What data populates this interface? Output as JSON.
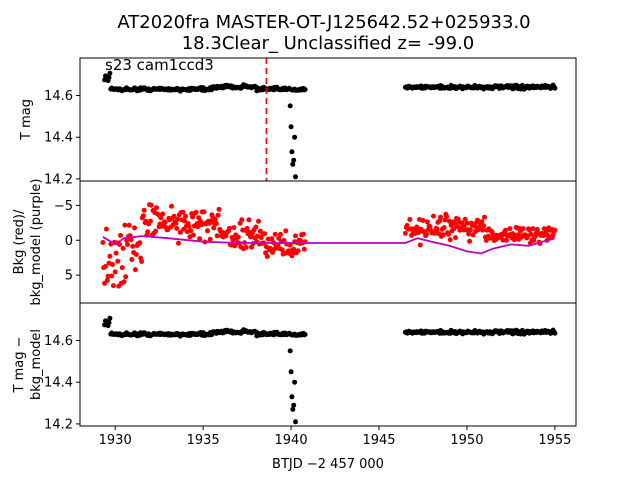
{
  "title_line1": "AT2020fra  MASTER-OT-J125642.52+025933.0",
  "title_line2": "18.3Clear_ Unclassified z= -99.0",
  "annotation": "s23 cam1ccd3",
  "xlabel": "BTJD −2 457 000",
  "colors": {
    "points_black": "#000000",
    "points_red": "#ff0000",
    "model": "#bf00bf",
    "marker_line": "#ff0000"
  },
  "chart_data": [
    {
      "type": "scatter",
      "ylabel": "T mag",
      "xlim": [
        1928.0,
        1956.2
      ],
      "ylim": [
        14.78,
        14.19
      ],
      "inverted_y": true,
      "yticks": [
        "14.2",
        "14.4",
        "14.6"
      ],
      "ytick_values": [
        14.2,
        14.4,
        14.6
      ],
      "vline_x": 1938.6,
      "segments": [
        {
          "x_start": 1929.4,
          "x_end": 1940.8,
          "base": 14.63
        },
        {
          "x_start": 1946.5,
          "x_end": 1955.0,
          "base": 14.64
        }
      ],
      "flare": [
        {
          "x": 1939.95,
          "y": 14.55
        },
        {
          "x": 1940.0,
          "y": 14.45
        },
        {
          "x": 1940.05,
          "y": 14.33
        },
        {
          "x": 1940.1,
          "y": 14.27
        },
        {
          "x": 1940.15,
          "y": 14.29
        },
        {
          "x": 1940.2,
          "y": 14.4
        },
        {
          "x": 1940.25,
          "y": 14.21
        }
      ]
    },
    {
      "type": "scatter",
      "ylabel": "Bkg (red)/ bkg_model (purple)",
      "ylabel_lines": [
        "Bkg (red)/",
        "bkg_model (purple)"
      ],
      "xlim": [
        1928.0,
        1956.2
      ],
      "ylim": [
        -8.5,
        9.0
      ],
      "yticks": [
        "5",
        "0",
        "−5"
      ],
      "ytick_values": [
        5,
        0,
        -5
      ],
      "model_line": [
        {
          "x": 1929.3,
          "y": -0.5
        },
        {
          "x": 1930.0,
          "y": 0.6
        },
        {
          "x": 1930.5,
          "y": -0.3
        },
        {
          "x": 1931.5,
          "y": -0.6
        },
        {
          "x": 1933.0,
          "y": -0.3
        },
        {
          "x": 1935.0,
          "y": 0.2
        },
        {
          "x": 1937.0,
          "y": 0.4
        },
        {
          "x": 1940.8,
          "y": 0.4
        },
        {
          "x": 1946.5,
          "y": 0.4
        },
        {
          "x": 1947.2,
          "y": -0.3
        },
        {
          "x": 1948.0,
          "y": 0.2
        },
        {
          "x": 1949.0,
          "y": 0.8
        },
        {
          "x": 1950.0,
          "y": 1.6
        },
        {
          "x": 1950.8,
          "y": 1.9
        },
        {
          "x": 1951.5,
          "y": 1.2
        },
        {
          "x": 1952.5,
          "y": 0.6
        },
        {
          "x": 1953.5,
          "y": 0.8
        },
        {
          "x": 1954.2,
          "y": 0.3
        },
        {
          "x": 1955.0,
          "y": -0.3
        }
      ]
    },
    {
      "type": "scatter",
      "ylabel": "T mag − bkg_model",
      "ylabel_lines": [
        "T mag −",
        "bkg_model"
      ],
      "xlim": [
        1928.0,
        1956.2
      ],
      "ylim": [
        14.78,
        14.19
      ],
      "inverted_y": true,
      "yticks": [
        "14.2",
        "14.4",
        "14.6"
      ],
      "ytick_values": [
        14.2,
        14.4,
        14.6
      ],
      "xticks": [
        "1930",
        "1935",
        "1940",
        "1945",
        "1950",
        "1955"
      ],
      "xtick_values": [
        1930,
        1935,
        1940,
        1945,
        1950,
        1955
      ]
    }
  ]
}
